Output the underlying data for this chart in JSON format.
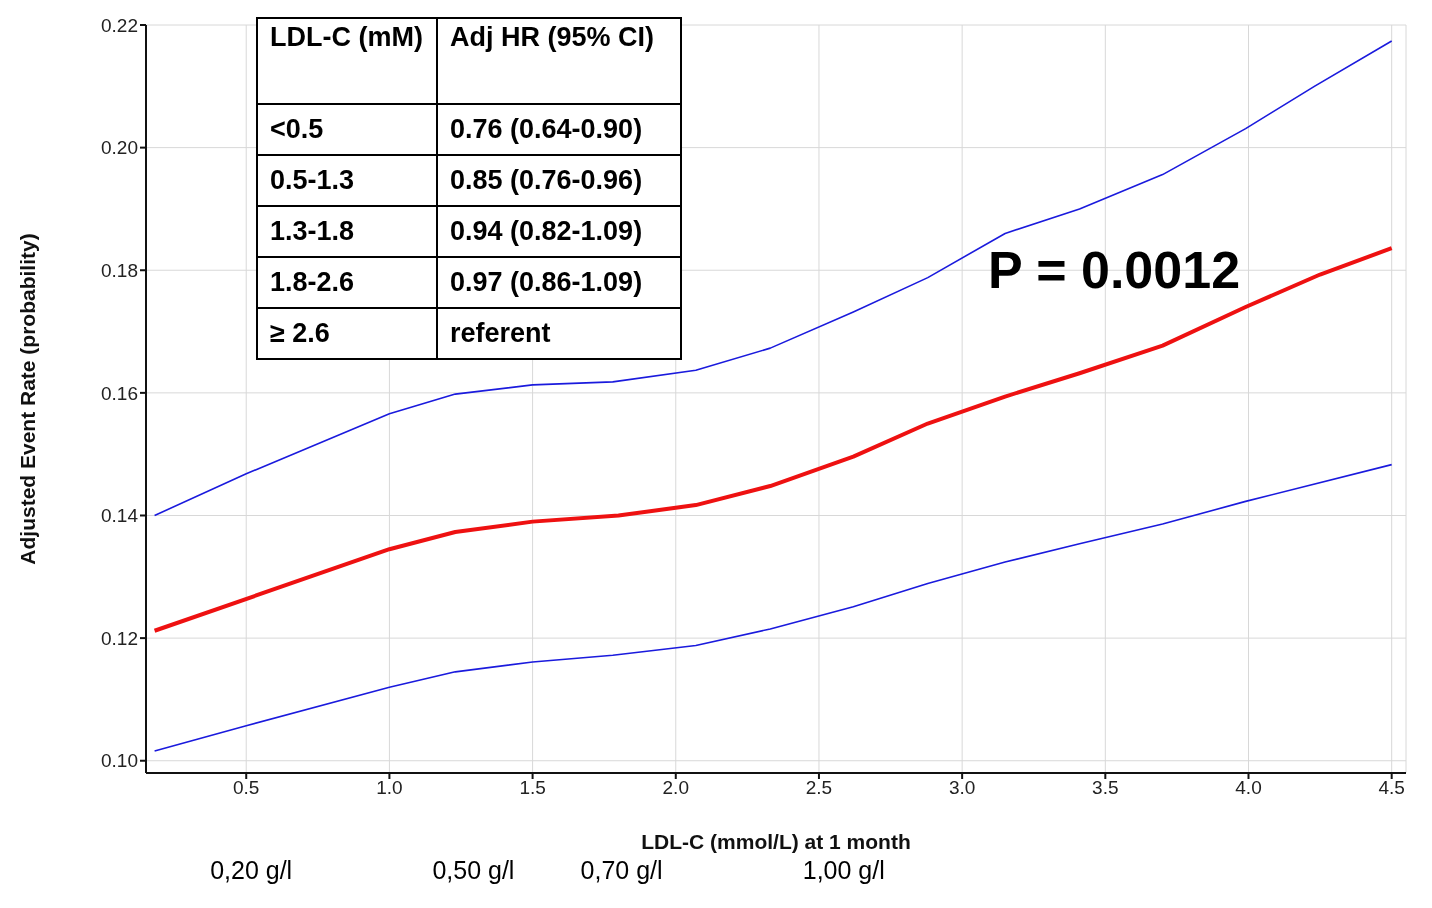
{
  "chart_data": {
    "type": "line",
    "xlabel": "LDL-C (mmol/L) at 1 month",
    "ylabel": "Adjusted Event Rate (probability)",
    "xlim": [
      0.15,
      4.55
    ],
    "xticks": [
      0.5,
      {
        "value": 1,
        "label": "1.0"
      },
      1.5,
      {
        "value": 2,
        "label": "2.0"
      },
      2.5,
      {
        "value": 3,
        "label": "3.0"
      },
      3.5,
      {
        "value": 4,
        "label": "4.0"
      },
      4.5
    ],
    "ylim": [
      0.098,
      0.22
    ],
    "yticks": [
      {
        "value": 0.1,
        "label": "0.10"
      },
      0.12,
      0.14,
      0.16,
      0.18,
      {
        "value": 0.2,
        "label": "0.20"
      },
      0.22
    ],
    "x2lim": [
      0.058,
      1.759
    ],
    "x2ticks": [
      {
        "value": 0.2,
        "label": "0,20 g/l"
      },
      {
        "value": 0.5,
        "label": "0,50 g/l"
      },
      {
        "value": 0.7,
        "label": "0,70 g/l"
      },
      {
        "value": 1.0,
        "label": "1,00 g/l"
      }
    ],
    "grid": true,
    "legend": false,
    "marker": "none",
    "line_style": "solid",
    "series": [
      {
        "color": "#ee1111",
        "x": [
          0.18,
          1.0,
          1.23,
          1.5,
          1.8,
          2.07,
          2.33,
          2.62,
          2.88,
          3.15,
          3.41,
          3.7,
          3.99,
          4.25,
          4.5
        ],
        "values": [
          0.1212,
          0.1345,
          0.1373,
          0.139,
          0.14,
          0.1417,
          0.1448,
          0.1496,
          0.155,
          0.1594,
          0.1632,
          0.1677,
          0.174,
          0.1793,
          0.1836
        ]
      },
      {
        "color": "#1a1add",
        "x": [
          0.18,
          0.5,
          1.0,
          1.23,
          1.5,
          1.78,
          2.07,
          2.33,
          2.62,
          2.88,
          3.15,
          3.41,
          3.7,
          3.99,
          4.23,
          4.5
        ],
        "values": [
          0.14,
          0.1468,
          0.1566,
          0.1598,
          0.1613,
          0.1618,
          0.1637,
          0.1673,
          0.1732,
          0.1788,
          0.186,
          0.19,
          0.1956,
          0.2031,
          0.21,
          0.2174
        ]
      },
      {
        "color": "#1a1add",
        "x": [
          0.18,
          0.5,
          1.0,
          1.23,
          1.5,
          1.78,
          2.07,
          2.33,
          2.62,
          2.88,
          3.15,
          3.41,
          3.7,
          3.99,
          4.5
        ],
        "values": [
          0.1016,
          0.1057,
          0.112,
          0.1145,
          0.1161,
          0.1172,
          0.1188,
          0.1215,
          0.1251,
          0.1289,
          0.1324,
          0.1354,
          0.1386,
          0.1423,
          0.1483
        ]
      }
    ],
    "annotations": [
      "LDL-C (mM)",
      "Adj HR (95% CI)",
      "<0.5",
      "0.76 (0.64-0.90)",
      "0.5-1.3",
      "0.85 (0.76-0.96)",
      "1.3-1.8",
      "0.94 (0.82-1.09)",
      "1.8-2.6",
      "0.97 (0.86-1.09)",
      "≥ 2.6",
      "referent",
      "P = 0.0012"
    ]
  }
}
